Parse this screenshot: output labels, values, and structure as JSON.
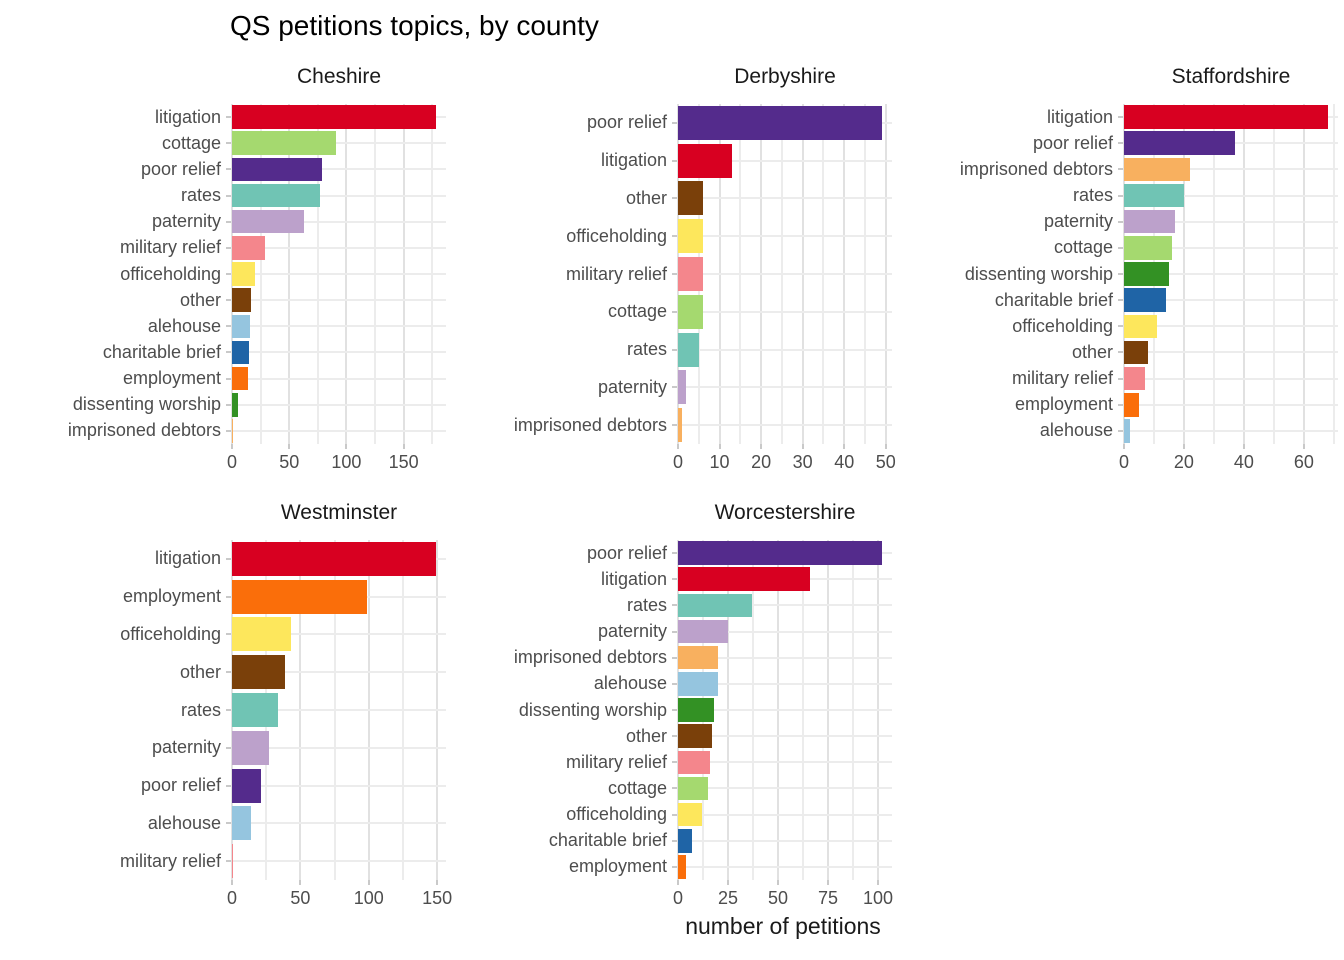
{
  "chart_data": {
    "type": "bar",
    "orientation": "horizontal",
    "title": "QS petitions topics, by county",
    "xlabel": "number of petitions",
    "grid": true,
    "legend": "none",
    "colors": {
      "litigation": "#D80021",
      "cottage": "#A5D96F",
      "poor relief": "#542B8C",
      "rates": "#70C4B4",
      "paternity": "#BCA1CB",
      "military relief": "#F4868C",
      "officeholding": "#FDE75C",
      "other": "#7A400A",
      "alehouse": "#95C5DF",
      "charitable brief": "#1F64A6",
      "employment": "#FA6E0A",
      "dissenting worship": "#339124",
      "imprisoned debtors": "#F8B05F"
    },
    "facets": [
      {
        "title": "Cheshire",
        "axis_max": 187,
        "grid_step": 25,
        "major_ticks": [
          0,
          50,
          100,
          150
        ],
        "categories": [
          "litigation",
          "cottage",
          "poor relief",
          "rates",
          "paternity",
          "military relief",
          "officeholding",
          "other",
          "alehouse",
          "charitable brief",
          "employment",
          "dissenting worship",
          "imprisoned debtors"
        ],
        "values": [
          178,
          91,
          79,
          77,
          63,
          29,
          20,
          17,
          16,
          15,
          14,
          5,
          1
        ]
      },
      {
        "title": "Derbyshire",
        "axis_max": 51.5,
        "grid_step": 5,
        "major_ticks": [
          0,
          10,
          20,
          30,
          40,
          50
        ],
        "categories": [
          "poor relief",
          "litigation",
          "other",
          "officeholding",
          "military relief",
          "cottage",
          "rates",
          "paternity",
          "imprisoned debtors"
        ],
        "values": [
          49,
          13,
          6,
          6,
          6,
          6,
          5,
          2,
          1
        ]
      },
      {
        "title": "Staffordshire",
        "axis_max": 71.4,
        "grid_step": 10,
        "major_ticks": [
          0,
          20,
          40,
          60
        ],
        "categories": [
          "litigation",
          "poor relief",
          "imprisoned debtors",
          "rates",
          "paternity",
          "cottage",
          "dissenting worship",
          "charitable brief",
          "officeholding",
          "other",
          "military relief",
          "employment",
          "alehouse"
        ],
        "values": [
          68,
          37,
          22,
          20,
          17,
          16,
          15,
          14,
          11,
          8,
          7,
          5,
          2
        ]
      },
      {
        "title": "Westminster",
        "axis_max": 156.5,
        "grid_step": 25,
        "major_ticks": [
          0,
          50,
          100,
          150
        ],
        "categories": [
          "litigation",
          "employment",
          "officeholding",
          "other",
          "rates",
          "paternity",
          "poor relief",
          "alehouse",
          "military relief"
        ],
        "values": [
          149,
          99,
          43,
          39,
          34,
          27,
          21,
          14,
          1
        ]
      },
      {
        "title": "Worcestershire",
        "axis_max": 107,
        "grid_step": 12.5,
        "major_ticks": [
          0,
          25,
          50,
          75,
          100
        ],
        "categories": [
          "poor relief",
          "litigation",
          "rates",
          "paternity",
          "imprisoned debtors",
          "alehouse",
          "dissenting worship",
          "other",
          "military relief",
          "cottage",
          "officeholding",
          "charitable brief",
          "employment"
        ],
        "values": [
          102,
          66,
          37,
          25,
          20,
          20,
          18,
          17,
          16,
          15,
          12,
          7,
          4
        ]
      }
    ]
  }
}
